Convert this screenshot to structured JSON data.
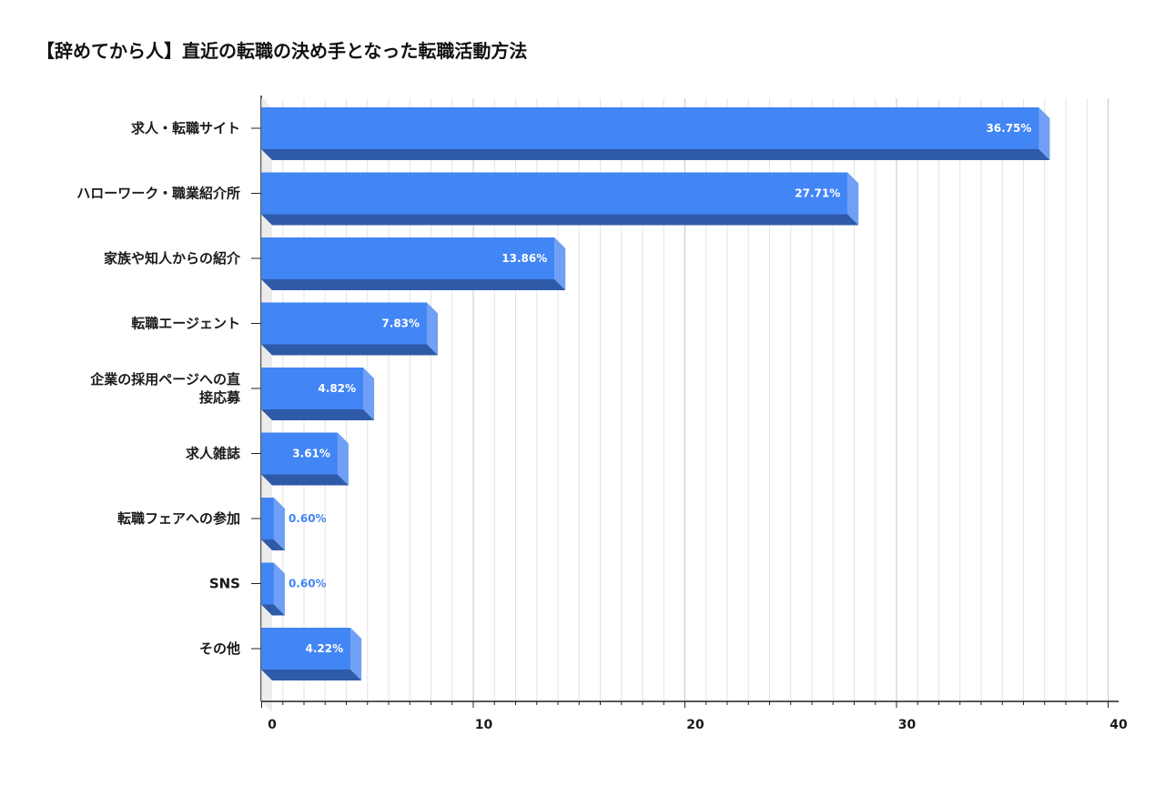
{
  "chart_data": {
    "type": "bar",
    "orientation": "horizontal",
    "title": "【辞めてから人】直近の転職の決め手となった転職活動方法",
    "categories": [
      [
        "求人・転職サイト"
      ],
      [
        "ハローワーク・職業紹介所"
      ],
      [
        "家族や知人からの紹介"
      ],
      [
        "転職エージェント"
      ],
      [
        "企業の採用ページへの直",
        "接応募"
      ],
      [
        "求人雑誌"
      ],
      [
        "転職フェアへの参加"
      ],
      [
        "SNS"
      ],
      [
        "その他"
      ]
    ],
    "values": [
      36.75,
      27.71,
      13.86,
      7.83,
      4.82,
      3.61,
      0.6,
      0.6,
      4.22
    ],
    "value_labels": [
      "36.75%",
      "27.71%",
      "13.86%",
      "7.83%",
      "4.82%",
      "3.61%",
      "0.60%",
      "0.60%",
      "4.22%"
    ],
    "xlim": [
      0,
      40
    ],
    "x_ticks": [
      0,
      10,
      20,
      30,
      40
    ],
    "minor_tick_step": 1,
    "grid": true,
    "style": "3d",
    "colors": {
      "bar_front": "#4285f4",
      "bar_top": "#2f5aa8",
      "bar_side": "#6fa0f5",
      "value_inside": "#ffffff",
      "value_outside": "#4285f4",
      "grid": "#d9d9d9",
      "axis": "#222222"
    }
  }
}
